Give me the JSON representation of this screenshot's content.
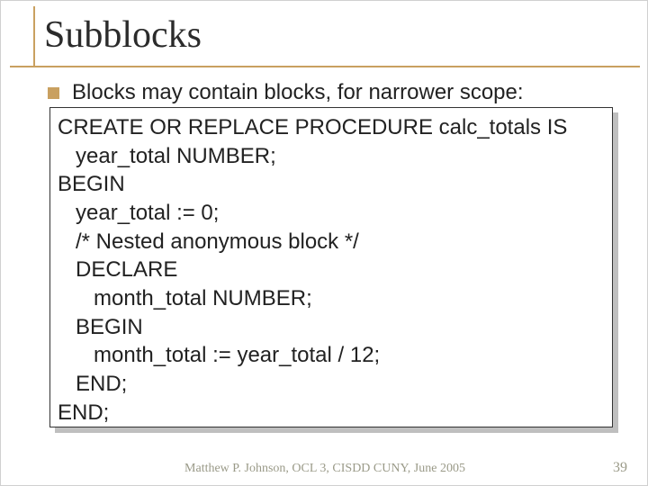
{
  "title": "Subblocks",
  "bullet": "Blocks may contain blocks, for narrower scope:",
  "code": {
    "l0": "CREATE OR REPLACE PROCEDURE calc_totals IS",
    "l1": "   year_total NUMBER;",
    "l2": "BEGIN",
    "l3": "   year_total := 0;",
    "l4": "   /* Nested anonymous block */",
    "l5": "   DECLARE",
    "l6": "      month_total NUMBER;",
    "l7": "   BEGIN",
    "l8": "      month_total := year_total / 12;",
    "l9": "   END;",
    "l10": "END;"
  },
  "footer": "Matthew P. Johnson, OCL 3, CISDD CUNY, June 2005",
  "page": "39",
  "colors": {
    "accent": "#c9a060",
    "text": "#222222",
    "footer": "#9a9a88",
    "shadow": "#bfbfbf",
    "bg": "#ffffff"
  },
  "fonts": {
    "title_family": "Times New Roman",
    "title_size_pt": 32,
    "body_family": "Arial",
    "body_size_pt": 18,
    "footer_size_pt": 10
  }
}
